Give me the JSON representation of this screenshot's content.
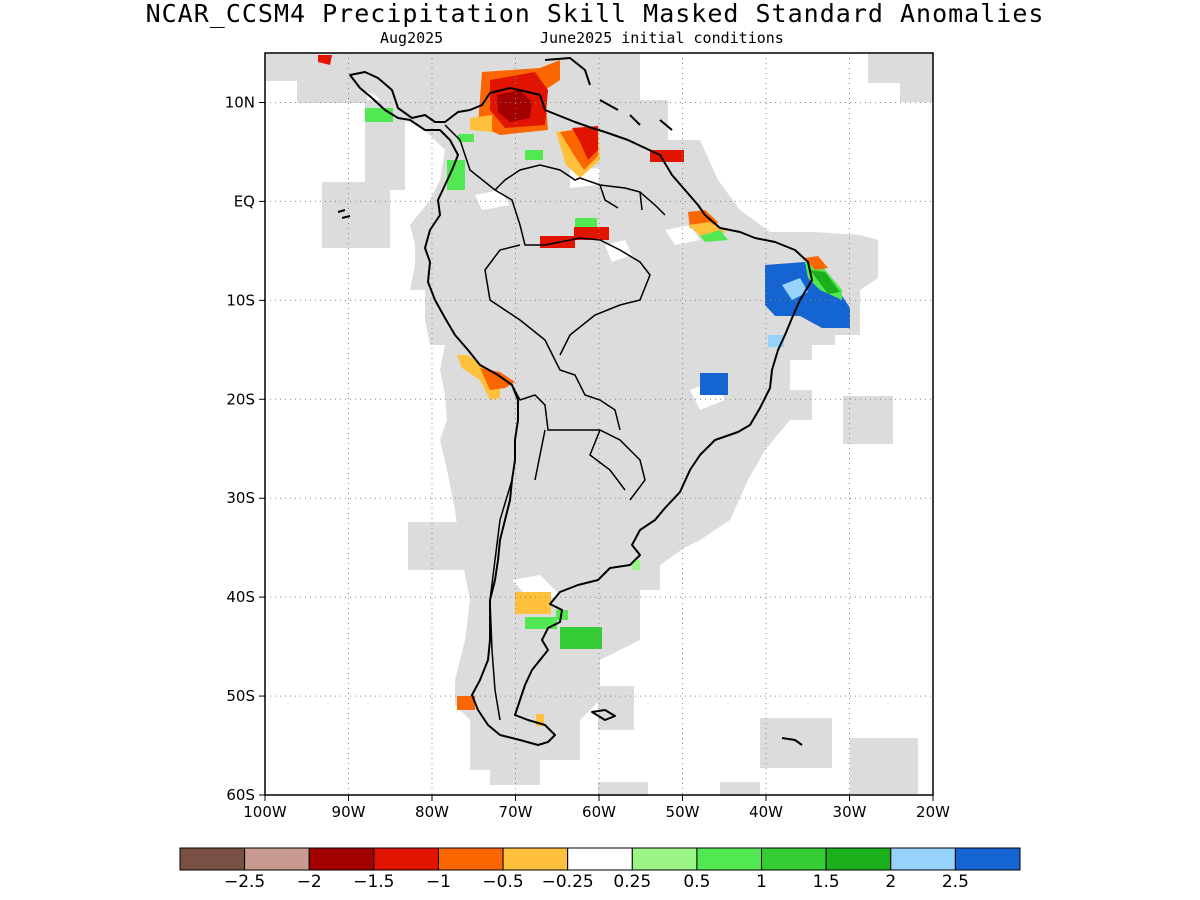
{
  "title": "NCAR_CCSM4 Precipitation Skill Masked Standard Anomalies",
  "subtitle_left": "Aug2025",
  "subtitle_right": "June2025 initial conditions",
  "map": {
    "lon_range": [
      -100,
      -20
    ],
    "lat_range": [
      -60,
      15
    ],
    "lat_ticks": [
      {
        "lat": 10,
        "label": "10N"
      },
      {
        "lat": 0,
        "label": "EQ"
      },
      {
        "lat": -10,
        "label": "10S"
      },
      {
        "lat": -20,
        "label": "20S"
      },
      {
        "lat": -30,
        "label": "30S"
      },
      {
        "lat": -40,
        "label": "40S"
      },
      {
        "lat": -50,
        "label": "50S"
      },
      {
        "lat": -60,
        "label": "60S"
      }
    ],
    "lon_ticks": [
      {
        "lon": -100,
        "label": "100W"
      },
      {
        "lon": -90,
        "label": "90W"
      },
      {
        "lon": -80,
        "label": "80W"
      },
      {
        "lon": -70,
        "label": "70W"
      },
      {
        "lon": -60,
        "label": "60W"
      },
      {
        "lon": -50,
        "label": "50W"
      },
      {
        "lon": -40,
        "label": "40W"
      },
      {
        "lon": -30,
        "label": "30W"
      },
      {
        "lon": -20,
        "label": "20W"
      }
    ],
    "grid": "dotted",
    "mask_color": "#dcdcdc"
  },
  "colorbar": {
    "colors": [
      "#7a5044",
      "#c89a90",
      "#a30000",
      "#e01400",
      "#fc6600",
      "#ffc03c",
      "#ffffff",
      "#9af586",
      "#52e852",
      "#36cc36",
      "#1caf1c",
      "#96d2fa",
      "#1464d2"
    ],
    "labels": [
      "−2.5",
      "−2",
      "−1.5",
      "−1",
      "−0.5",
      "−0.25",
      "0.25",
      "0.5",
      "1",
      "1.5",
      "2",
      "2.5"
    ]
  }
}
